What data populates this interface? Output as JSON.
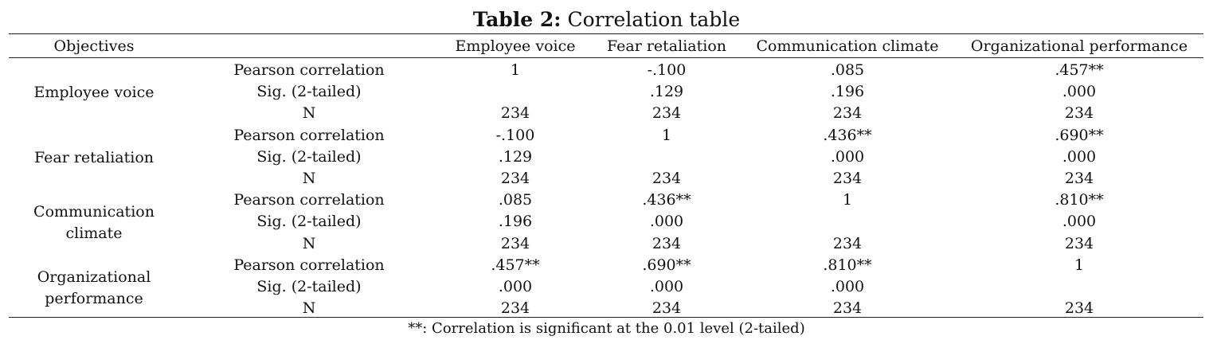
{
  "caption": {
    "lead": "Table 2:",
    "text": " Correlation table"
  },
  "headers": {
    "objectives": "Objectives",
    "col1": "Employee voice",
    "col2": "Fear retaliation",
    "col3": "Communication climate",
    "col4": "Organizational performance"
  },
  "stat_labels": {
    "pearson": "Pearson correlation",
    "sig": "Sig. (2-tailed)",
    "n": "N"
  },
  "groups": [
    {
      "label_lines": [
        "Employee voice"
      ],
      "rows": [
        [
          "1",
          "-.100",
          ".085",
          ".457**"
        ],
        [
          "",
          ".129",
          ".196",
          ".000"
        ],
        [
          "234",
          "234",
          "234",
          "234"
        ]
      ]
    },
    {
      "label_lines": [
        "Fear retaliation"
      ],
      "rows": [
        [
          "-.100",
          "1",
          ".436**",
          ".690**"
        ],
        [
          ".129",
          "",
          ".000",
          ".000"
        ],
        [
          "234",
          "234",
          "234",
          "234"
        ]
      ]
    },
    {
      "label_lines": [
        "Communication",
        "climate"
      ],
      "rows": [
        [
          ".085",
          ".436**",
          "1",
          ".810**"
        ],
        [
          ".196",
          ".000",
          "",
          ".000"
        ],
        [
          "234",
          "234",
          "234",
          "234"
        ]
      ]
    },
    {
      "label_lines": [
        "Organizational",
        "performance"
      ],
      "rows": [
        [
          ".457**",
          ".690**",
          ".810**",
          "1"
        ],
        [
          ".000",
          ".000",
          ".000",
          ""
        ],
        [
          "234",
          "234",
          "234",
          "234"
        ]
      ]
    }
  ],
  "footnote": "**: Correlation is significant at the 0.01 level (2-tailed)"
}
